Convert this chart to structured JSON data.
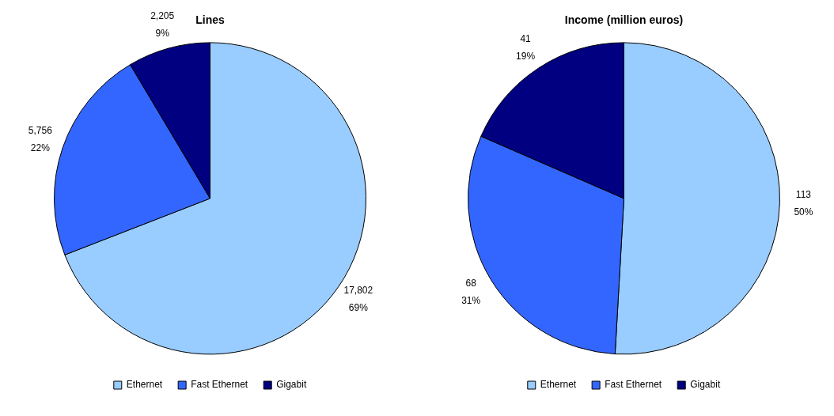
{
  "chart_data": [
    {
      "type": "pie",
      "title": "Lines",
      "categories": [
        "Ethernet",
        "Fast Ethernet",
        "Gigabit"
      ],
      "values": [
        17802,
        5756,
        2205
      ],
      "colors": [
        "#99ccff",
        "#3366ff",
        "#000080"
      ],
      "value_labels": [
        "17,802 69%",
        "5,756 22%",
        "2,205 9%"
      ],
      "legend": "bottom"
    },
    {
      "type": "pie",
      "title": "Income (million euros)",
      "categories": [
        "Ethernet",
        "Fast Ethernet",
        "Gigabit"
      ],
      "values": [
        113,
        68,
        41
      ],
      "colors": [
        "#99ccff",
        "#3366ff",
        "#000080"
      ],
      "value_labels": [
        "113 50%",
        "68 31%",
        "41 19%"
      ],
      "legend": "bottom"
    }
  ]
}
